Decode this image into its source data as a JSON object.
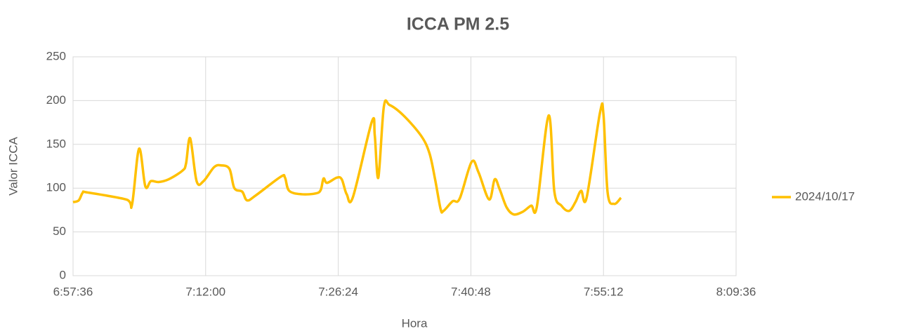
{
  "chart_data": {
    "type": "line",
    "title": "ICCA PM 2.5",
    "xlabel": "Hora",
    "ylabel": "Valor ICCA",
    "x": [
      "6:57:36",
      "6:58:13",
      "6:58:40",
      "6:59:12",
      "7:03:23",
      "7:04:00",
      "7:04:46",
      "7:05:27",
      "7:06:03",
      "7:06:54",
      "7:07:58",
      "7:09:29",
      "7:09:52",
      "7:10:19",
      "7:11:01",
      "7:11:46",
      "7:12:55",
      "7:13:41",
      "7:14:35",
      "7:15:07",
      "7:15:58",
      "7:16:30",
      "7:17:29",
      "7:20:09",
      "7:20:37",
      "7:21:04",
      "7:22:26",
      "7:23:58",
      "7:24:30",
      "7:24:48",
      "7:25:11",
      "7:26:15",
      "7:26:47",
      "7:27:19",
      "7:28:00",
      "7:30:03",
      "7:30:22",
      "7:30:45",
      "7:31:21",
      "7:31:58",
      "7:33:29",
      "7:35:23",
      "7:36:18",
      "7:36:55",
      "7:37:31",
      "7:37:50",
      "7:38:49",
      "7:39:35",
      "7:40:53",
      "7:41:38",
      "7:42:47",
      "7:43:23",
      "7:43:55",
      "7:44:41",
      "7:45:27",
      "7:46:26",
      "7:47:21",
      "7:47:58",
      "7:49:15",
      "7:49:52",
      "7:50:38",
      "7:51:28",
      "7:52:09",
      "7:52:46",
      "7:53:22",
      "7:54:49",
      "7:55:12",
      "7:55:39",
      "7:56:21",
      "7:57:06"
    ],
    "series": [
      {
        "name": "2024/10/17",
        "color": "#ffc000",
        "values": [
          84,
          86,
          95,
          95,
          87,
          81,
          145,
          102,
          108,
          107,
          110,
          120,
          128,
          157,
          108,
          108,
          124,
          126,
          122,
          100,
          96,
          86,
          92,
          113,
          112,
          97,
          93,
          94,
          98,
          111,
          106,
          112,
          110,
          93,
          90,
          176,
          160,
          112,
          193,
          195,
          183,
          160,
          140,
          110,
          76,
          74,
          85,
          88,
          130,
          118,
          87,
          110,
          99,
          78,
          70,
          73,
          80,
          79,
          183,
          96,
          80,
          74,
          84,
          97,
          89,
          186,
          184,
          95,
          82,
          89
        ]
      }
    ],
    "xlim": [
      "6:57:36",
      "8:09:36"
    ],
    "xticks": [
      "6:57:36",
      "7:12:00",
      "7:26:24",
      "7:40:48",
      "7:55:12",
      "8:09:36"
    ],
    "ylim": [
      0,
      250
    ],
    "yticks": [
      0,
      50,
      100,
      150,
      200,
      250
    ],
    "grid": true,
    "legend": "right"
  }
}
